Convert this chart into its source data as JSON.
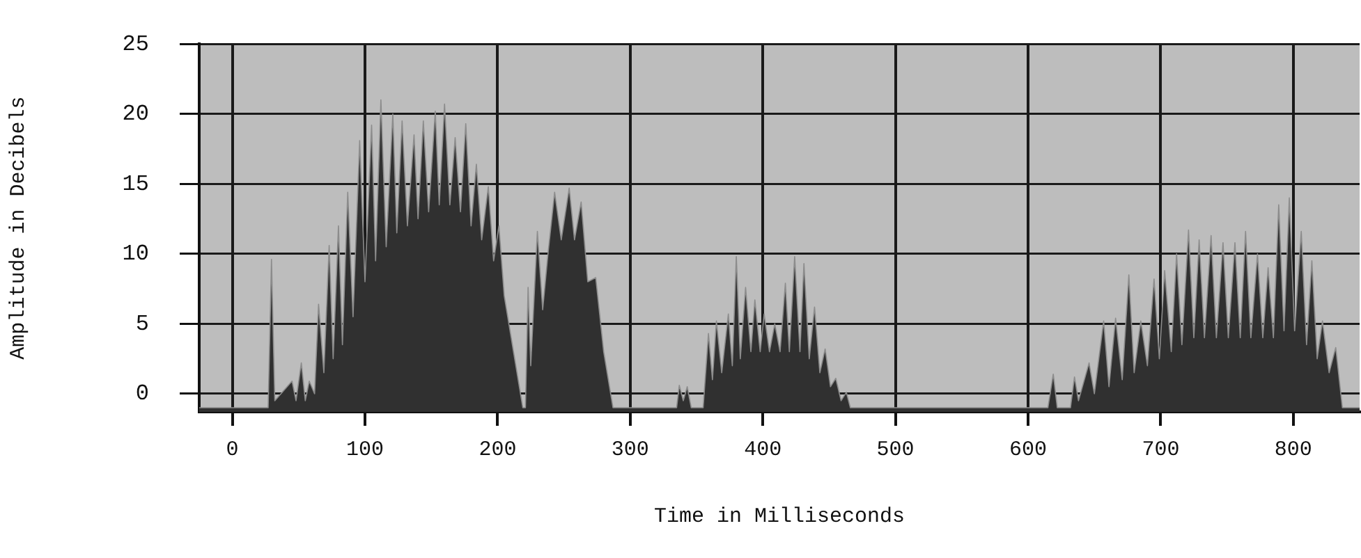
{
  "chart_data": {
    "type": "area",
    "xlabel": "Time in Milliseconds",
    "ylabel": "Amplitude in Decibels",
    "color": "#303030",
    "grid": true,
    "xlim": [
      -25,
      850
    ],
    "xticks": [
      0,
      100,
      200,
      300,
      400,
      500,
      600,
      700,
      800
    ],
    "ylim": [
      -1.3,
      25
    ],
    "yticks": [
      0,
      5,
      10,
      15,
      20,
      25
    ],
    "x": [
      -25,
      27,
      29.5,
      32,
      45,
      48,
      52,
      55,
      58,
      62,
      65,
      69,
      73,
      76,
      80,
      83,
      87,
      91,
      96,
      100,
      105,
      108,
      112,
      116,
      121,
      124,
      128,
      132,
      137,
      140,
      144,
      148,
      153,
      156,
      160,
      164,
      168,
      172,
      176,
      180,
      184,
      188,
      193,
      197,
      201,
      205,
      212,
      219,
      221,
      223,
      225,
      230,
      234,
      238,
      243,
      248,
      254,
      258,
      263,
      268,
      274,
      280,
      287,
      335,
      337,
      340,
      343,
      346,
      355,
      359,
      362,
      365,
      369,
      374,
      377,
      380,
      383,
      387,
      391,
      394,
      398,
      401,
      405,
      409,
      413,
      417,
      420,
      424,
      428,
      431,
      435,
      439,
      443,
      447,
      451,
      455,
      459,
      463,
      466,
      615,
      619,
      622,
      632,
      635,
      638,
      646,
      650,
      657,
      661,
      666,
      671,
      676,
      680,
      685,
      690,
      695,
      699,
      703,
      708,
      712,
      716,
      721,
      725,
      729,
      733,
      738,
      742,
      747,
      751,
      756,
      760,
      764,
      768,
      773,
      777,
      781,
      785,
      789,
      793,
      797,
      801,
      806,
      810,
      814,
      818,
      822,
      827,
      832,
      837,
      850
    ],
    "values": [
      -1,
      -1,
      9.6,
      -0.5,
      0.9,
      -0.5,
      2.2,
      -0.5,
      0.9,
      0,
      6.4,
      1.5,
      10.6,
      2.5,
      12,
      3.5,
      14.4,
      5.5,
      18.1,
      8,
      19.2,
      9.5,
      21,
      10.5,
      20,
      11.5,
      19.5,
      12,
      18.5,
      12.5,
      19.5,
      13,
      20.2,
      13.5,
      20.7,
      13.5,
      18.3,
      13,
      19.3,
      12,
      16.4,
      11,
      14.8,
      9.5,
      12,
      7,
      3,
      -1,
      -1,
      7.6,
      2,
      11.6,
      6,
      10,
      14.4,
      11,
      14.7,
      11,
      13.7,
      8,
      8.3,
      3,
      -1,
      -1,
      0.6,
      -0.5,
      0.5,
      -1,
      -1,
      4.3,
      1,
      5.2,
      1.5,
      5.7,
      2,
      9.8,
      2.5,
      7.6,
      3,
      6.7,
      3,
      5.7,
      3,
      5,
      3,
      7.9,
      3,
      9.8,
      3,
      9.3,
      2.5,
      6.2,
      1.5,
      3.2,
      0.5,
      1.1,
      -0.5,
      0.1,
      -1,
      -1,
      1.4,
      -1,
      -1,
      1.2,
      -0.5,
      2.2,
      0,
      5.2,
      0.5,
      5.4,
      1,
      8.5,
      1.5,
      5.2,
      2,
      8.2,
      2.5,
      8.8,
      3,
      10,
      3.5,
      11.7,
      4,
      11,
      4,
      11.3,
      4,
      10.8,
      4,
      10.8,
      4,
      11.6,
      4,
      10,
      4,
      9,
      4,
      13.5,
      4.5,
      14,
      4.5,
      11.6,
      3.5,
      9.5,
      2.5,
      5.2,
      1.5,
      3.3,
      -1,
      -1
    ]
  }
}
